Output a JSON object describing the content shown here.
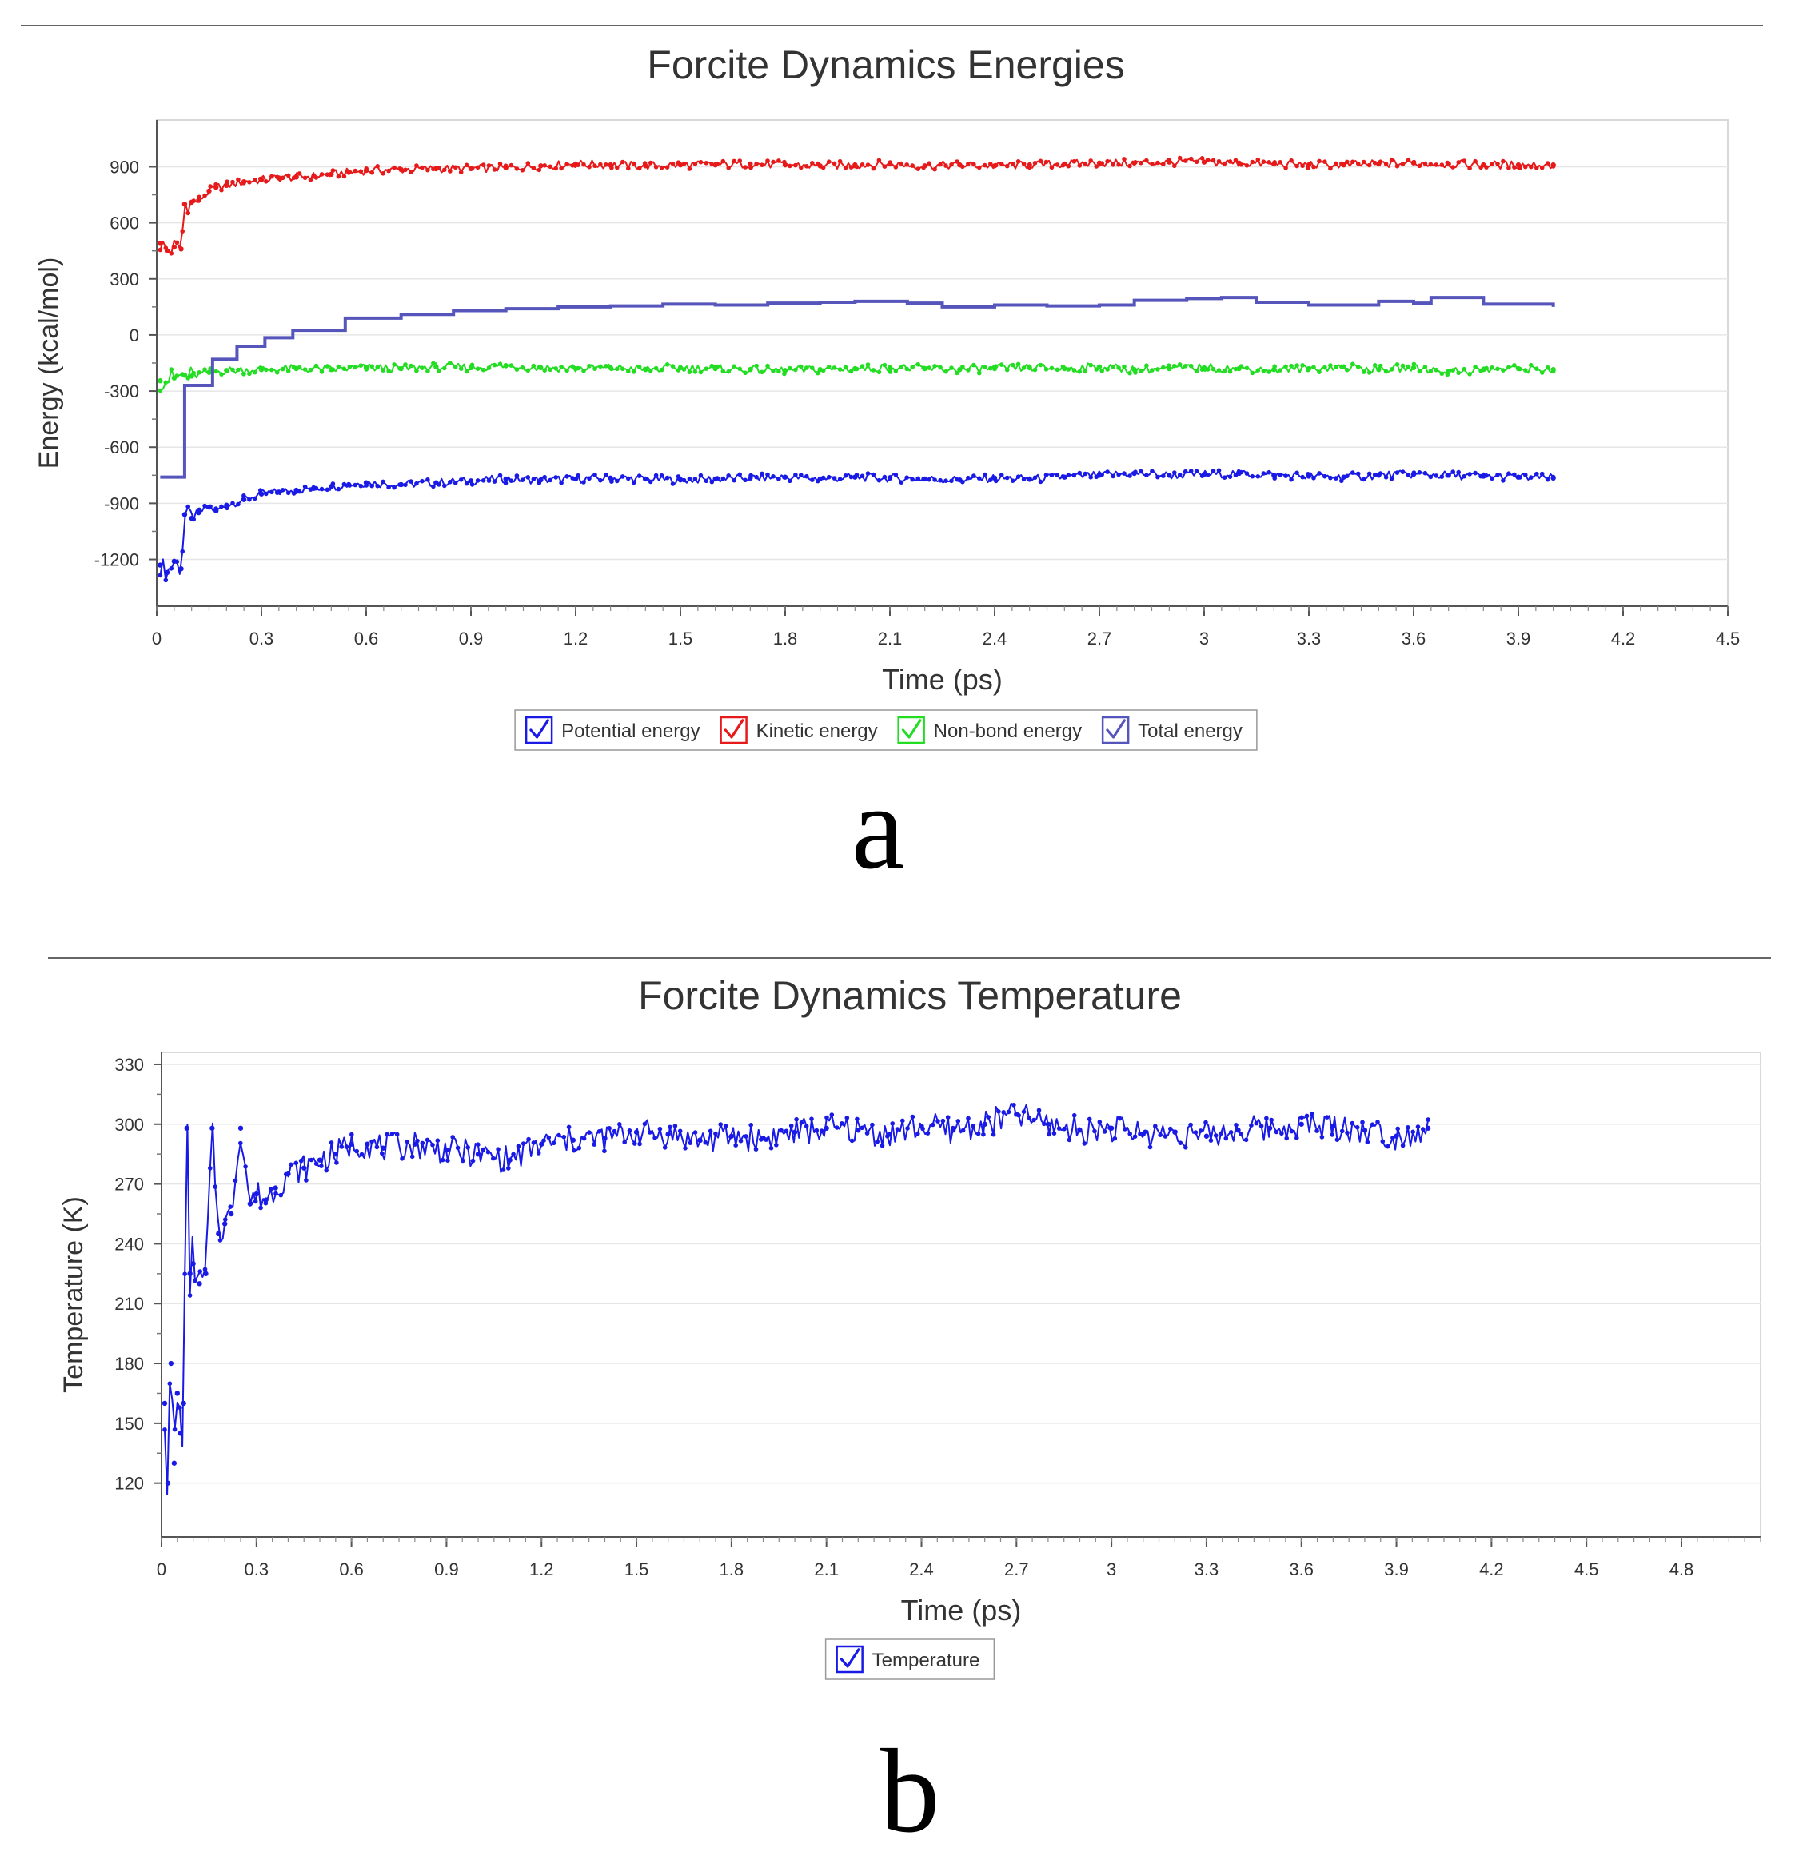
{
  "panel_a_letter": "a",
  "panel_b_letter": "b",
  "chart_data": [
    {
      "type": "line",
      "title": "Forcite Dynamics Energies",
      "xlabel": "Time (ps)",
      "ylabel": "Energy (kcal/mol)",
      "xlim": [
        0,
        4.5
      ],
      "ylim": [
        -1450,
        1150
      ],
      "xticks": [
        0,
        0.3,
        0.6,
        0.9,
        1.2,
        1.5,
        1.8,
        2.1,
        2.4,
        2.7,
        3,
        3.3,
        3.6,
        3.9,
        4.2,
        4.5
      ],
      "xtick_labels": [
        "0",
        "0.3",
        "0.6",
        "0.9",
        "1.2",
        "1.5",
        "1.8",
        "2.1",
        "2.4",
        "2.7",
        "3",
        "3.3",
        "3.6",
        "3.9",
        "4.2",
        "4.5"
      ],
      "yticks": [
        900,
        600,
        300,
        0,
        -300,
        -600,
        -900,
        -1200
      ],
      "ytick_labels": [
        "900",
        "600",
        "300",
        "0",
        "-300",
        "-600",
        "-900",
        "-1200"
      ],
      "grid": true,
      "legend_position": "bottom-center",
      "legend_checked": true,
      "series": [
        {
          "name": "Potential energy",
          "color": "#1a1ae6",
          "markers": true,
          "x": [
            0.01,
            0.03,
            0.05,
            0.07,
            0.08,
            0.1,
            0.12,
            0.15,
            0.17,
            0.2,
            0.25,
            0.3,
            0.35,
            0.4,
            0.45,
            0.5,
            0.55,
            0.6,
            0.7,
            0.8,
            0.9,
            1.0,
            1.1,
            1.2,
            1.3,
            1.4,
            1.5,
            1.6,
            1.7,
            1.8,
            1.9,
            2.0,
            2.1,
            2.2,
            2.3,
            2.4,
            2.5,
            2.6,
            2.7,
            2.8,
            2.9,
            3.0,
            3.1,
            3.2,
            3.3,
            3.4,
            3.5,
            3.6,
            3.7,
            3.8,
            3.9,
            4.0
          ],
          "y": [
            -1230,
            -1270,
            -1210,
            -1250,
            -960,
            -980,
            -950,
            -920,
            -940,
            -910,
            -880,
            -850,
            -840,
            -830,
            -820,
            -810,
            -800,
            -790,
            -800,
            -790,
            -780,
            -770,
            -775,
            -770,
            -765,
            -770,
            -775,
            -770,
            -765,
            -760,
            -770,
            -760,
            -765,
            -770,
            -775,
            -765,
            -770,
            -760,
            -750,
            -740,
            -750,
            -745,
            -740,
            -750,
            -755,
            -760,
            -750,
            -745,
            -750,
            -755,
            -760,
            -765
          ]
        },
        {
          "name": "Kinetic energy",
          "color": "#e61a1a",
          "markers": true,
          "x": [
            0.01,
            0.03,
            0.05,
            0.07,
            0.08,
            0.1,
            0.12,
            0.15,
            0.17,
            0.2,
            0.25,
            0.3,
            0.35,
            0.4,
            0.45,
            0.5,
            0.55,
            0.6,
            0.7,
            0.8,
            0.9,
            1.0,
            1.1,
            1.2,
            1.3,
            1.4,
            1.5,
            1.6,
            1.7,
            1.8,
            1.9,
            2.0,
            2.1,
            2.2,
            2.3,
            2.4,
            2.5,
            2.6,
            2.7,
            2.8,
            2.9,
            3.0,
            3.1,
            3.2,
            3.3,
            3.4,
            3.5,
            3.6,
            3.7,
            3.8,
            3.9,
            4.0
          ],
          "y": [
            490,
            450,
            470,
            460,
            700,
            710,
            720,
            770,
            790,
            800,
            820,
            830,
            840,
            845,
            850,
            860,
            870,
            880,
            885,
            890,
            890,
            895,
            905,
            915,
            910,
            905,
            910,
            910,
            915,
            910,
            905,
            910,
            915,
            905,
            910,
            905,
            910,
            915,
            920,
            920,
            925,
            925,
            920,
            915,
            910,
            910,
            915,
            920,
            915,
            910,
            910,
            910
          ]
        },
        {
          "name": "Non-bond energy",
          "color": "#22dd22",
          "markers": true,
          "x": [
            0.01,
            0.05,
            0.08,
            0.1,
            0.15,
            0.2,
            0.3,
            0.4,
            0.5,
            0.6,
            0.7,
            0.8,
            0.9,
            1.0,
            1.1,
            1.2,
            1.3,
            1.4,
            1.5,
            1.6,
            1.7,
            1.8,
            1.9,
            2.0,
            2.1,
            2.2,
            2.3,
            2.4,
            2.5,
            2.6,
            2.7,
            2.8,
            2.9,
            3.0,
            3.1,
            3.2,
            3.3,
            3.4,
            3.5,
            3.6,
            3.7,
            3.8,
            3.9,
            4.0
          ],
          "y": [
            -245,
            -230,
            -215,
            -220,
            -200,
            -190,
            -185,
            -180,
            -185,
            -175,
            -180,
            -170,
            -175,
            -165,
            -175,
            -180,
            -175,
            -185,
            -175,
            -180,
            -185,
            -190,
            -185,
            -180,
            -175,
            -180,
            -185,
            -180,
            -175,
            -180,
            -170,
            -185,
            -180,
            -175,
            -180,
            -185,
            -180,
            -170,
            -185,
            -175,
            -195,
            -185,
            -180,
            -185
          ]
        },
        {
          "name": "Total energy",
          "color": "#5555bb",
          "markers": false,
          "step": true,
          "x": [
            0.01,
            0.08,
            0.16,
            0.23,
            0.31,
            0.39,
            0.54,
            0.7,
            0.85,
            1.0,
            1.15,
            1.3,
            1.45,
            1.6,
            1.75,
            1.9,
            2.0,
            2.15,
            2.25,
            2.4,
            2.55,
            2.7,
            2.8,
            2.95,
            3.05,
            3.15,
            3.3,
            3.5,
            3.6,
            3.65,
            3.8,
            4.0
          ],
          "y": [
            -760,
            -270,
            -130,
            -60,
            -15,
            25,
            90,
            110,
            130,
            140,
            150,
            155,
            165,
            160,
            170,
            175,
            180,
            170,
            150,
            160,
            155,
            160,
            185,
            195,
            200,
            175,
            160,
            180,
            170,
            200,
            165,
            150
          ]
        }
      ]
    },
    {
      "type": "line",
      "title": "Forcite Dynamics Temperature",
      "xlabel": "Time (ps)",
      "ylabel": "Temperature (K)",
      "xlim": [
        0,
        5.05
      ],
      "ylim": [
        93,
        336
      ],
      "xticks": [
        0,
        0.3,
        0.6,
        0.9,
        1.2,
        1.5,
        1.8,
        2.1,
        2.4,
        2.7,
        3,
        3.3,
        3.6,
        3.9,
        4.2,
        4.5,
        4.8
      ],
      "xtick_labels": [
        "0",
        "0.3",
        "0.6",
        "0.9",
        "1.2",
        "1.5",
        "1.8",
        "2.1",
        "2.4",
        "2.7",
        "3",
        "3.3",
        "3.6",
        "3.9",
        "4.2",
        "4.5",
        "4.8"
      ],
      "yticks": [
        330,
        300,
        270,
        240,
        210,
        180,
        150,
        120
      ],
      "ytick_labels": [
        "330",
        "300",
        "270",
        "240",
        "210",
        "180",
        "150",
        "120"
      ],
      "grid": true,
      "legend_position": "bottom-center",
      "legend_checked": true,
      "series": [
        {
          "name": "Temperature",
          "color": "#1a1ae6",
          "markers": true,
          "x": [
            0.01,
            0.02,
            0.03,
            0.04,
            0.05,
            0.06,
            0.07,
            0.08,
            0.09,
            0.1,
            0.12,
            0.14,
            0.16,
            0.18,
            0.2,
            0.22,
            0.25,
            0.28,
            0.3,
            0.33,
            0.36,
            0.4,
            0.45,
            0.5,
            0.55,
            0.6,
            0.65,
            0.7,
            0.8,
            0.9,
            1.0,
            1.1,
            1.2,
            1.3,
            1.4,
            1.5,
            1.6,
            1.7,
            1.8,
            1.9,
            2.0,
            2.1,
            2.2,
            2.3,
            2.4,
            2.5,
            2.6,
            2.7,
            2.8,
            2.9,
            3.0,
            3.1,
            3.2,
            3.3,
            3.4,
            3.5,
            3.6,
            3.7,
            3.8,
            3.9,
            4.0
          ],
          "y": [
            160,
            120,
            180,
            130,
            165,
            145,
            160,
            298,
            225,
            230,
            220,
            225,
            298,
            245,
            250,
            255,
            298,
            260,
            265,
            262,
            268,
            275,
            278,
            282,
            285,
            290,
            290,
            288,
            290,
            287,
            285,
            282,
            290,
            292,
            293,
            296,
            295,
            292,
            294,
            293,
            296,
            298,
            297,
            295,
            299,
            297,
            300,
            305,
            300,
            297,
            298,
            295,
            296,
            294,
            297,
            298,
            300,
            299,
            297,
            294,
            298
          ]
        }
      ]
    }
  ]
}
